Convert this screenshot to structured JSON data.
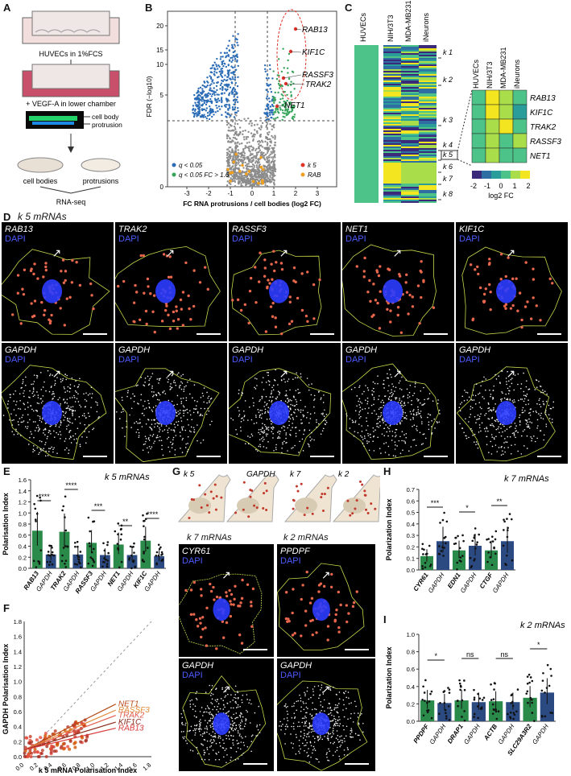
{
  "panels": {
    "A": "A",
    "B": "B",
    "C": "C",
    "D": "D",
    "E": "E",
    "F": "F",
    "G": "G",
    "H": "H",
    "I": "I"
  },
  "panelA": {
    "step1": "HUVECs in 1%FCS",
    "step2": "+ VEGF-A in lower chamber",
    "cell_body": "cell body",
    "protrusion": "protrusion",
    "out_left": "cell bodies",
    "out_right": "protrusions",
    "rnaseq": "RNA-seq"
  },
  "panelB": {
    "ylabel": "FDR (−log10)",
    "xlabel": "FC RNA protrusions / cell bodies (log2 FC)",
    "yticks": [
      "20",
      "15",
      "10",
      "5",
      "0"
    ],
    "xticks": [
      "-3",
      "-2",
      "-1",
      "0",
      "1",
      "2",
      "3"
    ],
    "genes": [
      "RAB13",
      "KIF1C",
      "RASSF3",
      "TRAK2",
      "NET1"
    ],
    "legend": {
      "blue": "q < 0.05",
      "green": "q < 0.05 FC > 1.6",
      "red": "k 5",
      "orange": "RAB"
    },
    "colors": {
      "blue": "#2b6cb6",
      "green": "#36a35a",
      "grey": "#8c8c8c",
      "red": "#e0332a",
      "orange": "#f0a020"
    }
  },
  "panelC": {
    "cols": [
      "HUVECs",
      "NIH/3T3",
      "MDA-MB231",
      "iNeurons"
    ],
    "clusters": [
      "k 1",
      "k 2",
      "k 3",
      "k 4",
      "k 5",
      "k 6",
      "k 7",
      "k 8"
    ],
    "zoom_genes": [
      "RAB13",
      "KIF1C",
      "TRAK2",
      "RASSF3",
      "NET1"
    ],
    "scale_ticks": [
      "-2",
      "-1",
      "0",
      "1",
      "2"
    ],
    "scale_label": "log2 FC"
  },
  "panelD": {
    "title": "k 5 mRNAs",
    "top": [
      "RAB13",
      "TRAK2",
      "RASSF3",
      "NET1",
      "KIF1C"
    ],
    "bottom": "GAPDH",
    "dapi": "DAPI"
  },
  "panelE": {
    "title": "k 5 mRNAs",
    "ylabel": "Polarisation Index",
    "yticks": [
      "0.0",
      "0.2",
      "0.4",
      "0.6",
      "0.8",
      "1.0",
      "1.2",
      "1.4",
      "1.6"
    ],
    "labels": [
      "RAB13",
      "GAPDH",
      "TRAK2",
      "GAPDH",
      "RASSF3",
      "GAPDH",
      "NET1",
      "GAPDH",
      "KIF1C",
      "GAPDH"
    ],
    "stars": [
      "****",
      "****",
      "***",
      "**",
      "****"
    ]
  },
  "panelF": {
    "ylabel": "GAPDH Polarisation Index",
    "xlabel": "k 5 mRNA Polarisation Index",
    "ticks": [
      "0.0",
      "0.2",
      "0.4",
      "0.6",
      "0.8",
      "1.0",
      "1.2",
      "1.4",
      "1.6",
      "1.8"
    ],
    "lines": [
      "NET1",
      "RASSF3",
      "TRAK2",
      "KIF1C",
      "RAB13"
    ]
  },
  "panelG": {
    "top_labels": [
      "k 5",
      "GAPDH",
      "k 7",
      "k 2"
    ],
    "left_title": "k 7 mRNAs",
    "right_title": "k 2 mRNAs",
    "cells": [
      "CYR61",
      "PPDPF",
      "GAPDH",
      "GAPDH"
    ],
    "dapi": "DAPI"
  },
  "panelH": {
    "title": "k 7 mRNAs",
    "ylabel": "Polarization Index",
    "yticks": [
      "0.0",
      "0.1",
      "0.2",
      "0.3",
      "0.4",
      "0.5",
      "0.6",
      "0.7"
    ],
    "labels": [
      "CYR61",
      "GAPDH",
      "EDN1",
      "GAPDH",
      "CTGF",
      "GAPDH"
    ],
    "stars": [
      "***",
      "*",
      "**"
    ]
  },
  "panelI": {
    "title": "k 2 mRNAs",
    "ylabel": "Polarization Index",
    "yticks": [
      "0.0",
      "0.2",
      "0.4",
      "0.6",
      "0.8",
      "1.0"
    ],
    "labels": [
      "PPDPF",
      "GAPDH",
      "DRAP1",
      "GAPDH",
      "ACTB",
      "GAPDH",
      "SLC29A3R2",
      "GAPDH"
    ],
    "stars": [
      "*",
      "ns",
      "ns",
      "*"
    ]
  }
}
